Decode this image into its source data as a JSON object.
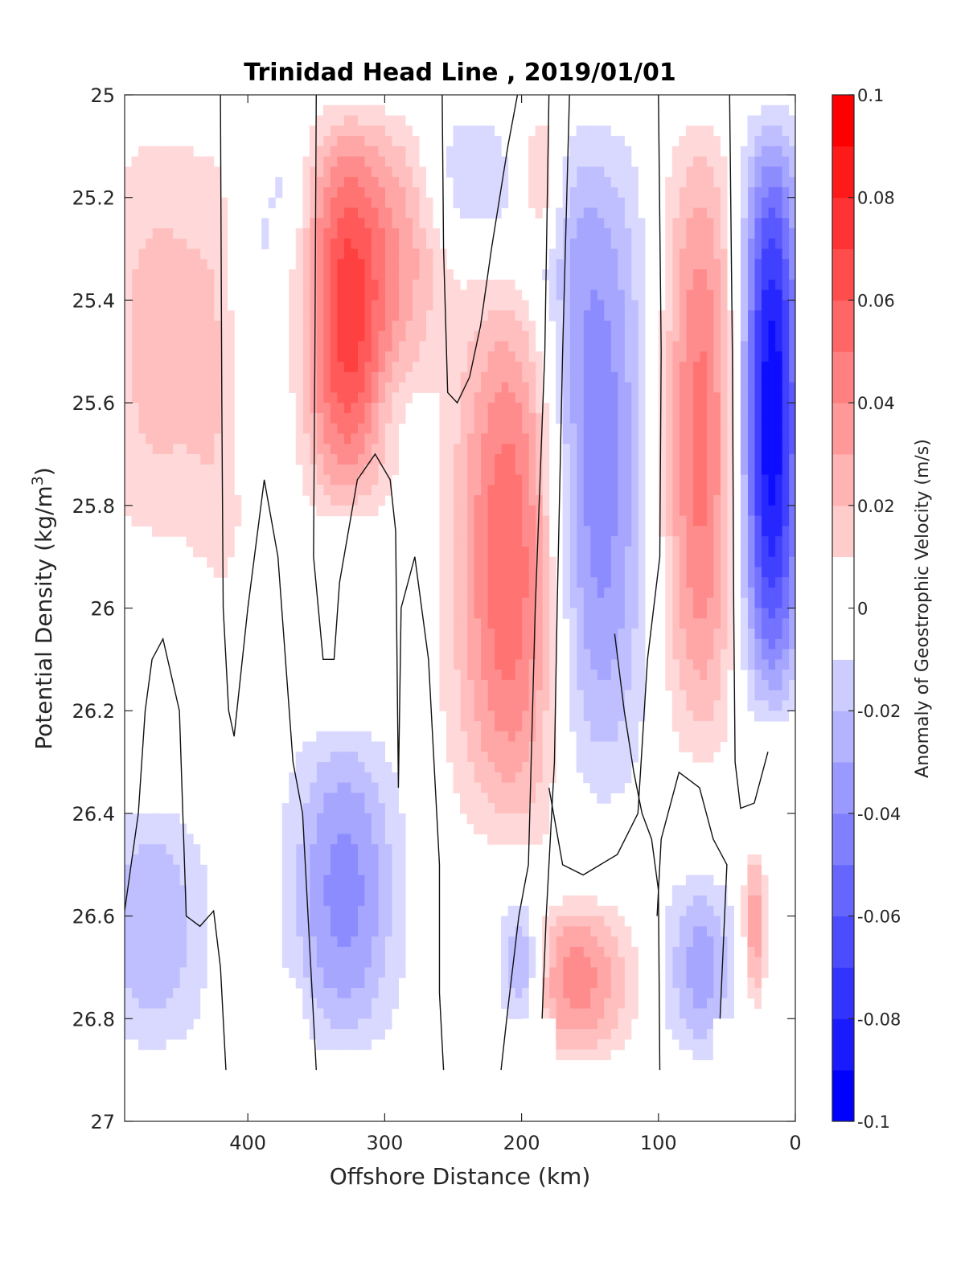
{
  "chart_data": {
    "type": "contour",
    "title": "Trinidad Head Line , 2019/01/01",
    "xlabel": "Offshore Distance (km)",
    "ylabel_main": "Potential Density (kg/m",
    "ylabel_sup": "3",
    "ylabel_close": ")",
    "x_reversed": true,
    "xlim": [
      0,
      490
    ],
    "ylim": [
      25,
      27
    ],
    "y_reversed": true,
    "x_ticks": [
      {
        "v": 400,
        "label": "400"
      },
      {
        "v": 300,
        "label": "300"
      },
      {
        "v": 200,
        "label": "200"
      },
      {
        "v": 100,
        "label": "100"
      },
      {
        "v": 0,
        "label": "0"
      }
    ],
    "y_ticks": [
      {
        "v": 25,
        "label": "25"
      },
      {
        "v": 25.2,
        "label": "25.2"
      },
      {
        "v": 25.4,
        "label": "25.4"
      },
      {
        "v": 25.6,
        "label": "25.6"
      },
      {
        "v": 25.8,
        "label": "25.8"
      },
      {
        "v": 26,
        "label": "26"
      },
      {
        "v": 26.2,
        "label": "26.2"
      },
      {
        "v": 26.4,
        "label": "26.4"
      },
      {
        "v": 26.6,
        "label": "26.6"
      },
      {
        "v": 26.8,
        "label": "26.8"
      },
      {
        "v": 27,
        "label": "27"
      }
    ],
    "colorbar": {
      "label": "Anomaly of Geostrophic Velocity (m/s)",
      "range": [
        -0.1,
        0.1
      ],
      "ticks": [
        {
          "v": 0.1,
          "label": "0.1"
        },
        {
          "v": 0.08,
          "label": "0.08"
        },
        {
          "v": 0.06,
          "label": "0.06"
        },
        {
          "v": 0.04,
          "label": "0.04"
        },
        {
          "v": 0.02,
          "label": "0.02"
        },
        {
          "v": 0,
          "label": "0"
        },
        {
          "v": -0.02,
          "label": "-0.02"
        },
        {
          "v": -0.04,
          "label": "-0.04"
        },
        {
          "v": -0.06,
          "label": "-0.06"
        },
        {
          "v": -0.08,
          "label": "-0.08"
        },
        {
          "v": -0.1,
          "label": "-0.1"
        }
      ],
      "levels": [
        -0.1,
        -0.09,
        -0.08,
        -0.07,
        -0.06,
        -0.05,
        -0.04,
        -0.03,
        -0.02,
        -0.01,
        0.01,
        0.02,
        0.03,
        0.04,
        0.05,
        0.06,
        0.07,
        0.08,
        0.09,
        0.1
      ]
    },
    "cores": [
      {
        "x": 465,
        "y0": 25.0,
        "y1": 25.95,
        "w": 45,
        "peak": 0.025
      },
      {
        "x": 420,
        "y0": 25.0,
        "y1": 26.2,
        "w": 22,
        "peak": 0.013
      },
      {
        "x": 395,
        "y0": 25.0,
        "y1": 25.8,
        "w": 20,
        "peak": -0.015
      },
      {
        "x": 370,
        "y0": 25.0,
        "y1": 25.35,
        "w": 14,
        "peak": -0.012
      },
      {
        "x": 328,
        "y0": 25.0,
        "y1": 25.85,
        "w": 30,
        "peak": 0.075
      },
      {
        "x": 285,
        "y0": 25.0,
        "y1": 25.6,
        "w": 28,
        "peak": 0.028
      },
      {
        "x": 240,
        "y0": 25.0,
        "y1": 25.3,
        "w": 35,
        "peak": -0.018
      },
      {
        "x": 205,
        "y0": 25.3,
        "y1": 26.5,
        "w": 42,
        "peak": 0.065
      },
      {
        "x": 185,
        "y0": 25.0,
        "y1": 25.35,
        "w": 14,
        "peak": 0.03
      },
      {
        "x": 150,
        "y0": 25.0,
        "y1": 26.45,
        "w": 40,
        "peak": -0.055
      },
      {
        "x": 70,
        "y0": 25.0,
        "y1": 26.35,
        "w": 28,
        "peak": 0.055
      },
      {
        "x": 18,
        "y0": 25.0,
        "y1": 26.25,
        "w": 22,
        "peak": -0.1
      },
      {
        "x": 330,
        "y0": 26.2,
        "y1": 26.9,
        "w": 38,
        "peak": -0.045
      },
      {
        "x": 470,
        "y0": 26.35,
        "y1": 26.9,
        "w": 40,
        "peak": -0.03
      },
      {
        "x": 160,
        "y0": 26.55,
        "y1": 26.9,
        "w": 38,
        "peak": 0.045
      },
      {
        "x": 200,
        "y0": 26.55,
        "y1": 26.85,
        "w": 16,
        "peak": -0.04
      },
      {
        "x": 70,
        "y0": 26.5,
        "y1": 26.9,
        "w": 26,
        "peak": -0.035
      },
      {
        "x": 30,
        "y0": 26.45,
        "y1": 26.8,
        "w": 8,
        "peak": 0.04
      },
      {
        "x": 400,
        "y0": 26.55,
        "y1": 26.75,
        "w": 8,
        "peak": 0.012
      },
      {
        "x": 370,
        "y0": 26.7,
        "y1": 26.9,
        "w": 12,
        "peak": 0.012
      }
    ],
    "zero_contours": [
      [
        [
          420,
          25.0
        ],
        [
          419,
          25.6
        ],
        [
          418,
          26.0
        ],
        [
          414,
          26.2
        ],
        [
          410,
          26.25
        ],
        [
          400,
          26.0
        ],
        [
          388,
          25.75
        ],
        [
          378,
          25.9
        ],
        [
          367,
          26.3
        ],
        [
          360,
          26.4
        ],
        [
          350,
          26.9
        ]
      ],
      [
        [
          350,
          25.0
        ],
        [
          351,
          25.5
        ],
        [
          352,
          25.9
        ],
        [
          345,
          26.1
        ],
        [
          337,
          26.1
        ],
        [
          333,
          25.95
        ],
        [
          320,
          25.75
        ],
        [
          307,
          25.7
        ],
        [
          296,
          25.75
        ],
        [
          292,
          25.85
        ],
        [
          290,
          26.35
        ],
        [
          288,
          26.0
        ],
        [
          278,
          25.9
        ],
        [
          268,
          26.1
        ],
        [
          264,
          26.3
        ],
        [
          260,
          26.5
        ],
        [
          260,
          26.75
        ],
        [
          257,
          26.9
        ]
      ],
      [
        [
          258,
          25.0
        ],
        [
          257,
          25.3
        ],
        [
          254,
          25.58
        ],
        [
          247,
          25.6
        ],
        [
          238,
          25.55
        ],
        [
          230,
          25.45
        ],
        [
          222,
          25.3
        ],
        [
          210,
          25.1
        ],
        [
          203,
          25.0
        ]
      ],
      [
        [
          180,
          25.0
        ],
        [
          183,
          25.5
        ],
        [
          190,
          26.0
        ],
        [
          193,
          26.3
        ],
        [
          195,
          26.5
        ],
        [
          202,
          26.6
        ],
        [
          210,
          26.78
        ],
        [
          215,
          26.9
        ]
      ],
      [
        [
          165,
          25.0
        ],
        [
          170,
          25.5
        ],
        [
          174,
          26.0
        ],
        [
          176,
          26.3
        ],
        [
          182,
          26.6
        ],
        [
          185,
          26.8
        ]
      ],
      [
        [
          100,
          25.0
        ],
        [
          98,
          25.5
        ],
        [
          99,
          25.9
        ],
        [
          108,
          26.1
        ],
        [
          115,
          26.4
        ],
        [
          130,
          26.48
        ],
        [
          155,
          26.52
        ],
        [
          170,
          26.5
        ],
        [
          180,
          26.35
        ]
      ],
      [
        [
          99,
          26.9
        ],
        [
          100,
          26.55
        ],
        [
          105,
          26.45
        ],
        [
          112,
          26.4
        ],
        [
          118,
          26.32
        ],
        [
          125,
          26.2
        ],
        [
          132,
          26.05
        ]
      ],
      [
        [
          48,
          25.0
        ],
        [
          46,
          25.5
        ],
        [
          45,
          26.0
        ],
        [
          44,
          26.3
        ],
        [
          40,
          26.39
        ],
        [
          30,
          26.38
        ],
        [
          20,
          26.28
        ]
      ],
      [
        [
          55,
          26.8
        ],
        [
          50,
          26.5
        ],
        [
          60,
          26.45
        ],
        [
          70,
          26.35
        ],
        [
          85,
          26.32
        ],
        [
          98,
          26.45
        ],
        [
          101,
          26.6
        ]
      ],
      [
        [
          490,
          26.59
        ],
        [
          480,
          26.4
        ],
        [
          475,
          26.2
        ],
        [
          470,
          26.1
        ],
        [
          462,
          26.06
        ],
        [
          450,
          26.2
        ],
        [
          445,
          26.6
        ],
        [
          435,
          26.62
        ],
        [
          425,
          26.59
        ],
        [
          420,
          26.7
        ],
        [
          416,
          26.9
        ]
      ]
    ],
    "mask": [
      [
        490,
        26.9
      ],
      [
        0,
        26.9
      ],
      [
        0,
        27.0
      ],
      [
        490,
        27.0
      ]
    ],
    "mask_bottom": [
      [
        200,
        26.8
      ],
      [
        175,
        26.8
      ],
      [
        175,
        26.9
      ],
      [
        200,
        26.9
      ],
      [
        60,
        26.8
      ],
      [
        0,
        26.8
      ],
      [
        0,
        26.9
      ],
      [
        60,
        26.9
      ]
    ]
  }
}
